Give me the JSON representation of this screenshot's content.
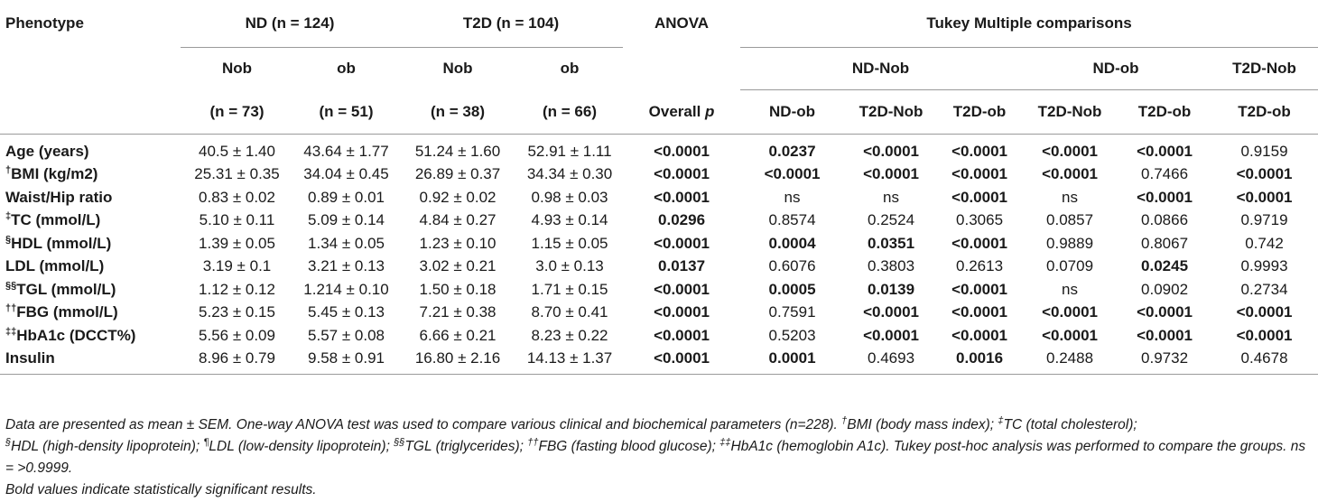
{
  "header": {
    "phenotype": "Phenotype",
    "nd_group": "ND (n = 124)",
    "t2d_group": "T2D (n = 104)",
    "anova": "ANOVA",
    "tukey": "Tukey Multiple comparisons",
    "nob": "Nob",
    "ob": "ob",
    "nd_nob": "ND-Nob",
    "nd_ob": "ND-ob",
    "t2d_nob": "T2D-Nob",
    "n73": "(n = 73)",
    "n51": "(n = 51)",
    "n38": "(n = 38)",
    "n66": "(n = 66)",
    "overall_p": "Overall p",
    "col_nd_ob": "ND-ob",
    "col_t2d_nob": "T2D-Nob",
    "col_t2d_ob": "T2D-ob"
  },
  "rows": [
    {
      "label_sup": "",
      "label": "Age (years)",
      "cells": [
        "40.5 ± 1.40",
        "43.64 ± 1.77",
        "51.24 ± 1.60",
        "52.91 ± 1.11",
        "<0.0001",
        "0.0237",
        "<0.0001",
        "<0.0001",
        "<0.0001",
        "<0.0001",
        "0.9159"
      ],
      "bold": [
        false,
        false,
        false,
        false,
        true,
        true,
        true,
        true,
        true,
        true,
        false
      ]
    },
    {
      "label_sup": "†",
      "label": "BMI (kg/m2)",
      "cells": [
        "25.31 ± 0.35",
        "34.04 ± 0.45",
        "26.89 ± 0.37",
        "34.34 ± 0.30",
        "<0.0001",
        "<0.0001",
        "<0.0001",
        "<0.0001",
        "<0.0001",
        "0.7466",
        "<0.0001"
      ],
      "bold": [
        false,
        false,
        false,
        false,
        true,
        true,
        true,
        true,
        true,
        false,
        true
      ]
    },
    {
      "label_sup": "",
      "label": "Waist/Hip ratio",
      "cells": [
        "0.83 ± 0.02",
        "0.89 ± 0.01",
        "0.92 ± 0.02",
        "0.98 ± 0.03",
        "<0.0001",
        "ns",
        "ns",
        "<0.0001",
        "ns",
        "<0.0001",
        "<0.0001"
      ],
      "bold": [
        false,
        false,
        false,
        false,
        true,
        false,
        false,
        true,
        false,
        true,
        true
      ]
    },
    {
      "label_sup": "‡",
      "label": "TC (mmol/L)",
      "cells": [
        "5.10 ± 0.11",
        "5.09 ± 0.14",
        "4.84 ± 0.27",
        "4.93 ± 0.14",
        "0.0296",
        "0.8574",
        "0.2524",
        "0.3065",
        "0.0857",
        "0.0866",
        "0.9719"
      ],
      "bold": [
        false,
        false,
        false,
        false,
        true,
        false,
        false,
        false,
        false,
        false,
        false
      ]
    },
    {
      "label_sup": "§",
      "label": "HDL (mmol/L)",
      "cells": [
        "1.39 ± 0.05",
        "1.34 ± 0.05",
        "1.23 ± 0.10",
        "1.15 ± 0.05",
        "<0.0001",
        "0.0004",
        "0.0351",
        "<0.0001",
        "0.9889",
        "0.8067",
        "0.742"
      ],
      "bold": [
        false,
        false,
        false,
        false,
        true,
        true,
        true,
        true,
        false,
        false,
        false
      ]
    },
    {
      "label_sup": "",
      "label": "LDL (mmol/L)",
      "cells": [
        "3.19 ± 0.1",
        "3.21 ± 0.13",
        "3.02 ± 0.21",
        "3.0 ± 0.13",
        "0.0137",
        "0.6076",
        "0.3803",
        "0.2613",
        "0.0709",
        "0.0245",
        "0.9993"
      ],
      "bold": [
        false,
        false,
        false,
        false,
        true,
        false,
        false,
        false,
        false,
        true,
        false
      ]
    },
    {
      "label_sup": "§§",
      "label": "TGL (mmol/L)",
      "cells": [
        "1.12 ± 0.12",
        "1.214 ± 0.10",
        "1.50 ± 0.18",
        "1.71 ± 0.15",
        "<0.0001",
        "0.0005",
        "0.0139",
        "<0.0001",
        "ns",
        "0.0902",
        "0.2734"
      ],
      "bold": [
        false,
        false,
        false,
        false,
        true,
        true,
        true,
        true,
        false,
        false,
        false
      ]
    },
    {
      "label_sup": "††",
      "label": "FBG (mmol/L)",
      "cells": [
        "5.23 ± 0.15",
        "5.45 ± 0.13",
        "7.21 ± 0.38",
        "8.70 ± 0.41",
        "<0.0001",
        "0.7591",
        "<0.0001",
        "<0.0001",
        "<0.0001",
        "<0.0001",
        "<0.0001"
      ],
      "bold": [
        false,
        false,
        false,
        false,
        true,
        false,
        true,
        true,
        true,
        true,
        true
      ]
    },
    {
      "label_sup": "‡‡",
      "label": "HbA1c (DCCT%)",
      "cells": [
        "5.56 ± 0.09",
        "5.57 ± 0.08",
        "6.66 ± 0.21",
        "8.23 ± 0.22",
        "<0.0001",
        "0.5203",
        "<0.0001",
        "<0.0001",
        "<0.0001",
        "<0.0001",
        "<0.0001"
      ],
      "bold": [
        false,
        false,
        false,
        false,
        true,
        false,
        true,
        true,
        true,
        true,
        true
      ]
    },
    {
      "label_sup": "",
      "label": "Insulin",
      "cells": [
        "8.96 ± 0.79",
        "9.58 ± 0.91",
        "16.80 ± 2.16",
        "14.13 ± 1.37",
        "<0.0001",
        "0.0001",
        "0.4693",
        "0.0016",
        "0.2488",
        "0.9732",
        "0.4678"
      ],
      "bold": [
        false,
        false,
        false,
        false,
        true,
        true,
        false,
        true,
        false,
        false,
        false
      ]
    }
  ],
  "notes": {
    "n1": "Data are presented as mean ± SEM. One-way ANOVA test was used to compare various clinical and biochemical parameters (n=228). ",
    "s1": "†",
    "n2": "BMI (body mass index); ",
    "s2": "‡",
    "n3": "TC (total cholesterol);",
    "s3": "§",
    "n4": "HDL (high-density lipoprotein); ",
    "s4": "¶",
    "n5": "LDL (low-density lipoprotein); ",
    "s5": "§§",
    "n6": "TGL (triglycerides); ",
    "s6": "††",
    "n7": "FBG (fasting blood glucose); ",
    "s7": "‡‡",
    "n8": "HbA1c (hemoglobin A1c). Tukey post-hoc analysis was performed to compare the groups. ns = >0.9999.",
    "bold_note": "Bold values indicate statistically significant results."
  }
}
